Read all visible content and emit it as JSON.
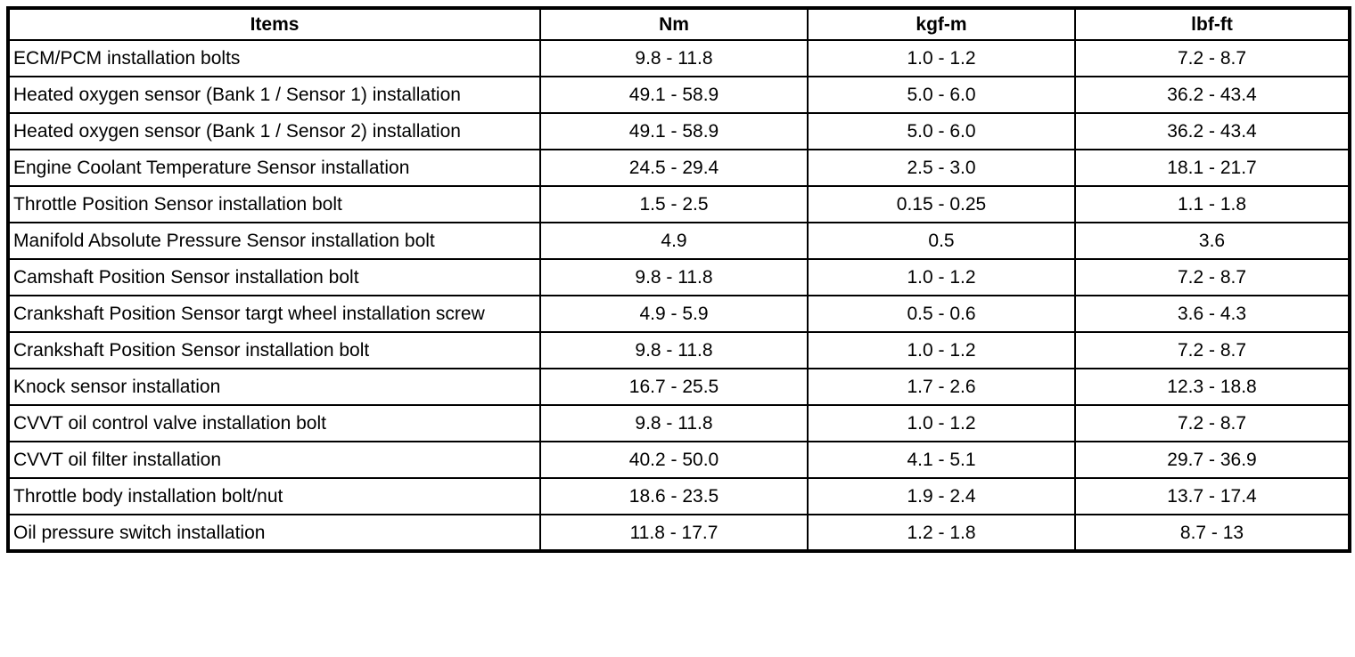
{
  "table": {
    "headers": {
      "items": "Items",
      "nm": "Nm",
      "kgf_m": "kgf-m",
      "lbf_ft": "lbf-ft"
    },
    "rows": [
      {
        "item": "ECM/PCM installation bolts",
        "nm": "9.8 - 11.8",
        "kgf_m": "1.0 - 1.2",
        "lbf_ft": "7.2 - 8.7"
      },
      {
        "item": "Heated oxygen sensor (Bank 1 / Sensor 1) installation",
        "nm": "49.1 - 58.9",
        "kgf_m": "5.0 - 6.0",
        "lbf_ft": "36.2 - 43.4"
      },
      {
        "item": "Heated oxygen sensor (Bank 1 / Sensor 2) installation",
        "nm": "49.1 - 58.9",
        "kgf_m": "5.0 - 6.0",
        "lbf_ft": "36.2 - 43.4"
      },
      {
        "item": "Engine Coolant Temperature Sensor installation",
        "nm": "24.5 - 29.4",
        "kgf_m": "2.5 - 3.0",
        "lbf_ft": "18.1 - 21.7"
      },
      {
        "item": "Throttle Position Sensor installation bolt",
        "nm": "1.5 - 2.5",
        "kgf_m": "0.15 - 0.25",
        "lbf_ft": "1.1 - 1.8"
      },
      {
        "item": "Manifold Absolute Pressure Sensor installation bolt",
        "nm": "4.9",
        "kgf_m": "0.5",
        "lbf_ft": "3.6"
      },
      {
        "item": "Camshaft Position Sensor installation bolt",
        "nm": "9.8 - 11.8",
        "kgf_m": "1.0 - 1.2",
        "lbf_ft": "7.2 - 8.7"
      },
      {
        "item": "Crankshaft Position Sensor targt wheel installation screw",
        "nm": "4.9 - 5.9",
        "kgf_m": "0.5 - 0.6",
        "lbf_ft": "3.6 - 4.3"
      },
      {
        "item": "Crankshaft Position Sensor installation bolt",
        "nm": "9.8 - 11.8",
        "kgf_m": "1.0 - 1.2",
        "lbf_ft": "7.2 - 8.7"
      },
      {
        "item": "Knock sensor installation",
        "nm": "16.7 - 25.5",
        "kgf_m": "1.7 - 2.6",
        "lbf_ft": "12.3 - 18.8"
      },
      {
        "item": "CVVT oil control valve installation bolt",
        "nm": "9.8 - 11.8",
        "kgf_m": "1.0 - 1.2",
        "lbf_ft": "7.2 - 8.7"
      },
      {
        "item": "CVVT oil filter installation",
        "nm": "40.2 - 50.0",
        "kgf_m": "4.1 - 5.1",
        "lbf_ft": "29.7 - 36.9"
      },
      {
        "item": "Throttle body installation bolt/nut",
        "nm": "18.6 - 23.5",
        "kgf_m": "1.9 - 2.4",
        "lbf_ft": "13.7 - 17.4"
      },
      {
        "item": "Oil pressure switch installation",
        "nm": "11.8 - 17.7",
        "kgf_m": "1.2 - 1.8",
        "lbf_ft": "8.7 - 13"
      }
    ]
  }
}
